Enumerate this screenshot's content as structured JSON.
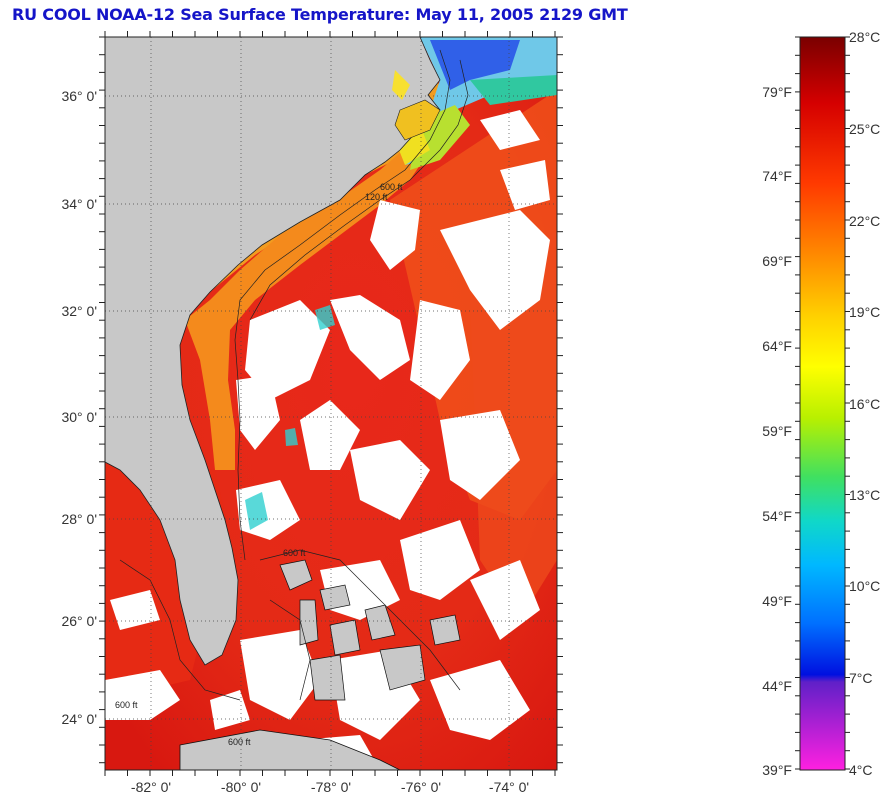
{
  "title": "RU COOL  NOAA-12  Sea Surface Temperature:  May 11, 2005 2129 GMT",
  "map": {
    "lat_labels": [
      "36° 0'",
      "34° 0'",
      "32° 0'",
      "30° 0'",
      "28° 0'",
      "26° 0'",
      "24° 0'"
    ],
    "lon_labels": [
      "-82° 0'",
      "-80° 0'",
      "-78° 0'",
      "-76° 0'",
      "-74° 0'"
    ],
    "isobath_labels": [
      "120 ft",
      "600 ft",
      "600 ft",
      "600 ft",
      "600 ft"
    ],
    "colors": {
      "land": "#c8c8c8",
      "cloud": "#ffffff",
      "warm_sea": "#e8261a",
      "shelf": "#f7a51c",
      "cool_water": "#30c8d8"
    }
  },
  "colorbar": {
    "celsius": [
      "28°C",
      "25°C",
      "22°C",
      "19°C",
      "16°C",
      "13°C",
      "10°C",
      "7°C",
      "4°C"
    ],
    "fahrenheit": [
      "79°F",
      "74°F",
      "69°F",
      "64°F",
      "59°F",
      "54°F",
      "49°F",
      "44°F",
      "39°F"
    ]
  }
}
